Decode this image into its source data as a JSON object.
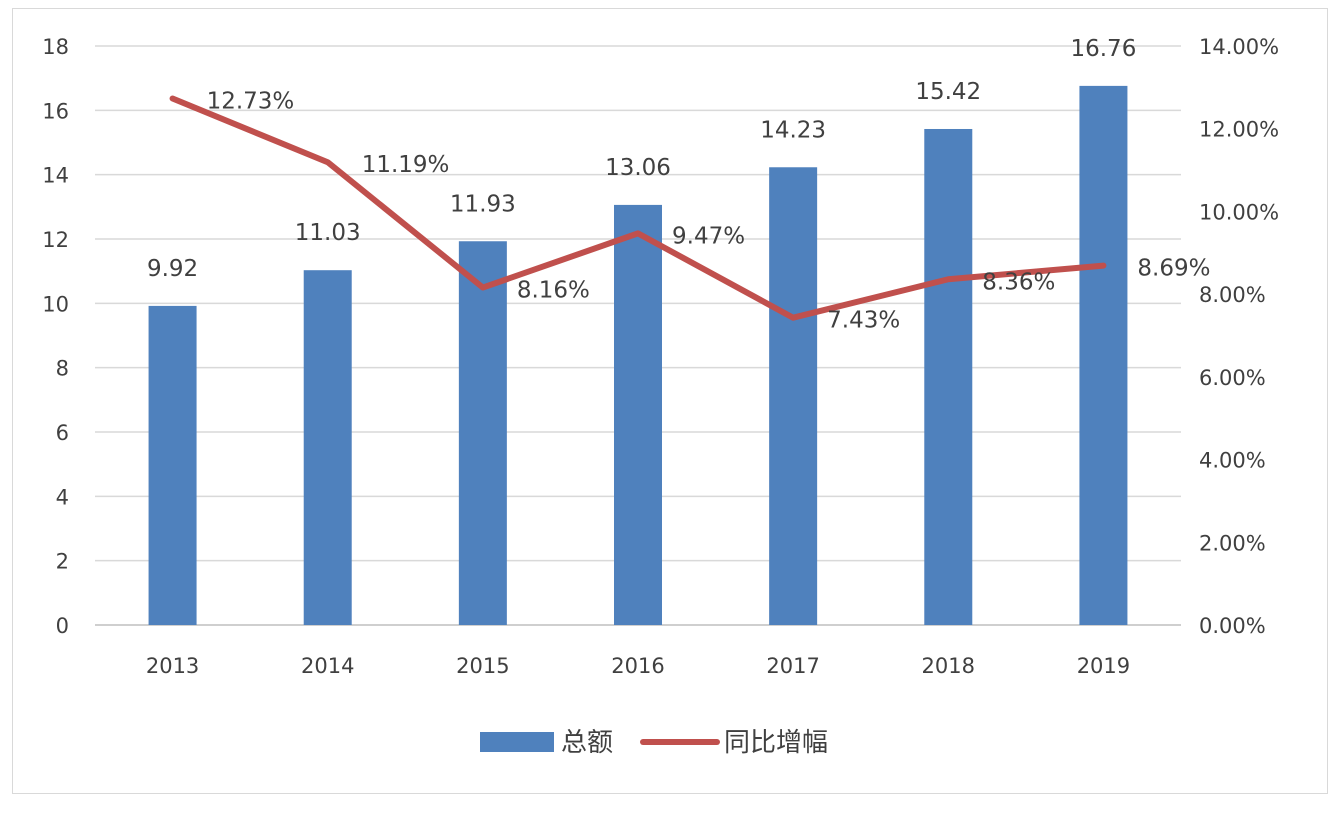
{
  "chart_data": {
    "type": "bar",
    "categories": [
      "2013",
      "2014",
      "2015",
      "2016",
      "2017",
      "2018",
      "2019"
    ],
    "series": [
      {
        "name": "总额",
        "type": "bar",
        "axis": "left",
        "values": [
          9.92,
          11.03,
          11.93,
          13.06,
          14.23,
          15.42,
          16.76
        ],
        "labels": [
          "9.92",
          "11.03",
          "11.93",
          "13.06",
          "14.23",
          "15.42",
          "16.76"
        ],
        "color": "#4f81bd"
      },
      {
        "name": "同比增幅",
        "type": "line",
        "axis": "right",
        "values": [
          0.1273,
          0.1119,
          0.0816,
          0.0947,
          0.0743,
          0.0836,
          0.0869
        ],
        "labels": [
          "12.73%",
          "11.19%",
          "8.16%",
          "9.47%",
          "7.43%",
          "8.36%",
          "8.69%"
        ],
        "color": "#c0504d"
      }
    ],
    "y_left": {
      "ylim": [
        0,
        18
      ],
      "ticks": [
        "0",
        "2",
        "4",
        "6",
        "8",
        "10",
        "12",
        "14",
        "16",
        "18"
      ]
    },
    "y_right": {
      "ylim": [
        0,
        0.14
      ],
      "ticks": [
        "0.00%",
        "2.00%",
        "4.00%",
        "6.00%",
        "8.00%",
        "10.00%",
        "12.00%",
        "14.00%"
      ]
    },
    "grid": true,
    "legend_position": "bottom"
  }
}
